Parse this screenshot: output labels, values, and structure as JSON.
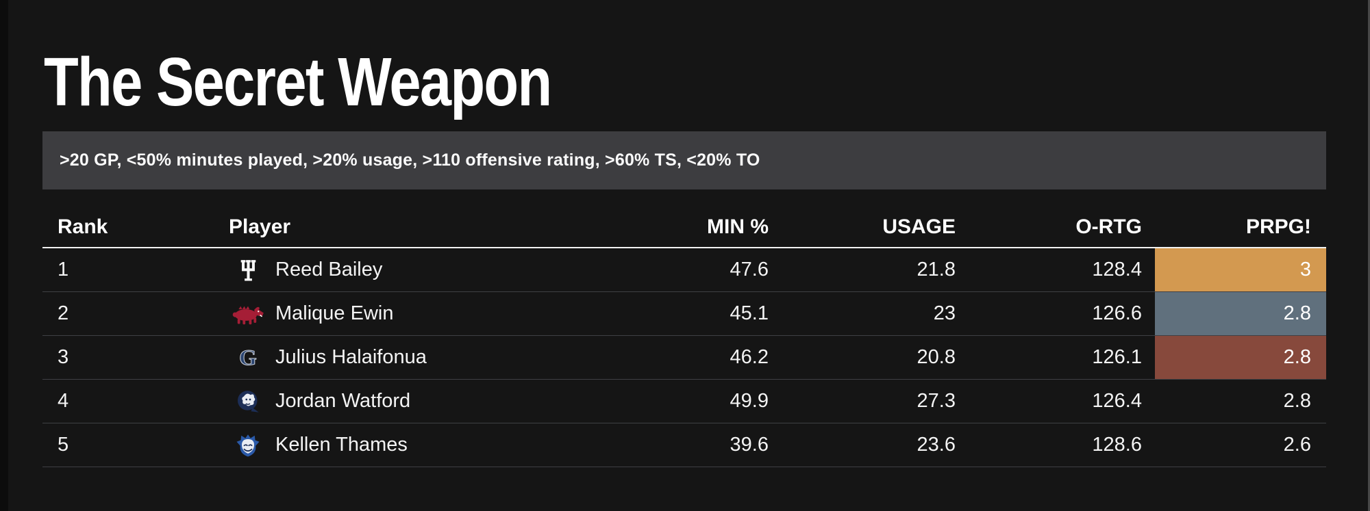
{
  "chart_data": {
    "type": "table",
    "title": "The Secret Weapon",
    "subtitle": ">20 GP, <50% minutes played, >20% usage, >110 offensive rating, >60% TS, <20% TO",
    "columns": [
      "Rank",
      "Player",
      "MIN %",
      "USAGE",
      "O-RTG",
      "PRPG!"
    ],
    "rows": [
      {
        "rank": "1",
        "team": "indiana",
        "player": "Reed Bailey",
        "min_pct": "47.6",
        "usage": "21.8",
        "o_rtg": "128.4",
        "prpg": "3",
        "prpg_bg": "#d39950"
      },
      {
        "rank": "2",
        "team": "arkansas",
        "player": "Malique Ewin",
        "min_pct": "45.1",
        "usage": "23",
        "o_rtg": "126.6",
        "prpg": "2.8",
        "prpg_bg": "#60707d"
      },
      {
        "rank": "3",
        "team": "georgetown",
        "player": "Julius Halaifonua",
        "min_pct": "46.2",
        "usage": "20.8",
        "o_rtg": "126.1",
        "prpg": "2.8",
        "prpg_bg": "#87493c"
      },
      {
        "rank": "4",
        "team": "queens",
        "player": "Jordan Watford",
        "min_pct": "49.9",
        "usage": "27.3",
        "o_rtg": "126.4",
        "prpg": "2.8",
        "prpg_bg": ""
      },
      {
        "rank": "5",
        "team": "saint-louis",
        "player": "Kellen Thames",
        "min_pct": "39.6",
        "usage": "23.6",
        "o_rtg": "128.6",
        "prpg": "2.6",
        "prpg_bg": ""
      }
    ],
    "highlight_colors": {
      "orange": "#d39950",
      "slate": "#60707d",
      "brick": "#87493c"
    },
    "layout_hints": {
      "background": "#151515",
      "filter_bar_bg": "#3d3d40",
      "header_rule": "#f2f2f2",
      "row_divider": "#3f4044"
    }
  }
}
